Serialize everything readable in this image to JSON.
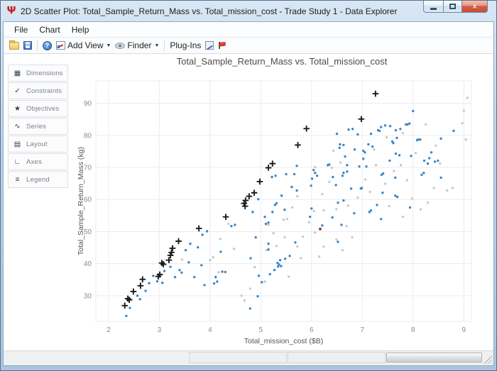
{
  "window": {
    "title": "2D Scatter Plot: Total_Sample_Return_Mass vs. Total_mission_cost - Trade Study 1 - Data Explorer",
    "app_icon_glyph": "Ψ",
    "close_glyph": "x"
  },
  "menu": {
    "items": [
      {
        "label": "File"
      },
      {
        "label": "Chart"
      },
      {
        "label": "Help"
      }
    ]
  },
  "toolbar": {
    "add_view_label": "Add View",
    "finder_label": "Finder",
    "plugins_label": "Plug-Ins",
    "help_glyph": "?",
    "caret": "▼"
  },
  "sidebar": {
    "items": [
      {
        "label": "Dimensions",
        "icon": "▦"
      },
      {
        "label": "Constraints",
        "icon": "✓"
      },
      {
        "label": "Objectives",
        "icon": "★"
      },
      {
        "label": "Series",
        "icon": "∿"
      },
      {
        "label": "Layout",
        "icon": "▤"
      },
      {
        "label": "Axes",
        "icon": "∟"
      },
      {
        "label": "Legend",
        "icon": "≡"
      }
    ]
  },
  "chart_data": {
    "type": "scatter",
    "title": "Total_Sample_Return_Mass vs. Total_mission_cost",
    "xlabel": "Total_mission_cost ($B)",
    "ylabel": "Total_Sample_Return_Mass (kg)",
    "xlim": [
      1.75,
      9.15
    ],
    "ylim": [
      22,
      97
    ],
    "xticks": [
      2,
      3,
      4,
      5,
      6,
      7,
      8,
      9
    ],
    "yticks": [
      30,
      40,
      50,
      60,
      70,
      80,
      90
    ],
    "grid": true,
    "legend": "none",
    "colors": {
      "gray": "#c9c9c9",
      "blue": "#3a87c8",
      "red": "#b03a2e",
      "black": "#1b1b1b",
      "gridline": "#ececf0"
    },
    "series": [
      {
        "name": "gray-points",
        "marker": "dot",
        "color": "#c9c9c9",
        "points": [
          [
            3.45,
            41.3
          ],
          [
            4.0,
            41.1
          ],
          [
            4.06,
            42.0
          ],
          [
            4.17,
            37.3
          ],
          [
            4.2,
            47.7
          ],
          [
            4.36,
            52.4
          ],
          [
            4.47,
            44.6
          ],
          [
            4.62,
            30.0
          ],
          [
            4.68,
            28.5
          ],
          [
            4.79,
            32.2
          ],
          [
            4.88,
            38.9
          ],
          [
            5.08,
            34.4
          ],
          [
            5.11,
            44.2
          ],
          [
            5.15,
            52.1
          ],
          [
            5.25,
            49.5
          ],
          [
            5.31,
            45.5
          ],
          [
            5.45,
            53.7
          ],
          [
            5.47,
            48.2
          ],
          [
            5.52,
            53.9
          ],
          [
            5.55,
            35.9
          ],
          [
            5.62,
            57.5
          ],
          [
            5.72,
            61.0
          ],
          [
            5.72,
            45.3
          ],
          [
            5.79,
            41.7
          ],
          [
            5.83,
            48.4
          ],
          [
            5.95,
            52.9
          ],
          [
            6.05,
            56.4
          ],
          [
            6.07,
            49.7
          ],
          [
            6.07,
            70.1
          ],
          [
            6.15,
            42.2
          ],
          [
            6.21,
            61.7
          ],
          [
            6.24,
            56.6
          ],
          [
            6.24,
            45.3
          ],
          [
            6.35,
            65.5
          ],
          [
            6.4,
            69.9
          ],
          [
            6.43,
            75.2
          ],
          [
            6.49,
            57.0
          ],
          [
            6.49,
            47.5
          ],
          [
            6.57,
            71.5
          ],
          [
            6.61,
            44.2
          ],
          [
            6.69,
            51.7
          ],
          [
            6.72,
            58.1
          ],
          [
            6.8,
            48.2
          ],
          [
            6.91,
            60.6
          ],
          [
            7.06,
            66.2
          ],
          [
            7.15,
            62.4
          ],
          [
            7.23,
            75.6
          ],
          [
            7.27,
            70.7
          ],
          [
            7.45,
            64.9
          ],
          [
            7.48,
            79.4
          ],
          [
            7.53,
            57.9
          ],
          [
            7.62,
            68.9
          ],
          [
            7.76,
            70.7
          ],
          [
            7.8,
            80.7
          ],
          [
            7.8,
            54.6
          ],
          [
            7.88,
            66.0
          ],
          [
            7.98,
            60.3
          ],
          [
            8.05,
            74.5
          ],
          [
            8.15,
            56.9
          ],
          [
            8.25,
            83.4
          ],
          [
            8.29,
            59.0
          ],
          [
            8.41,
            63.6
          ],
          [
            8.45,
            76.8
          ],
          [
            8.53,
            71.2
          ],
          [
            8.67,
            62.8
          ],
          [
            8.78,
            63.6
          ],
          [
            8.97,
            83.8
          ],
          [
            9.0,
            87.7
          ],
          [
            9.04,
            78.7
          ],
          [
            9.07,
            91.7
          ]
        ]
      },
      {
        "name": "blue-points",
        "marker": "dot",
        "color": "#3a87c8",
        "points": [
          [
            2.35,
            23.7
          ],
          [
            2.42,
            26.2
          ],
          [
            2.57,
            30.0
          ],
          [
            2.62,
            28.9
          ],
          [
            2.73,
            31.5
          ],
          [
            2.8,
            33.9
          ],
          [
            2.88,
            36.2
          ],
          [
            2.96,
            34.5
          ],
          [
            3.06,
            34.0
          ],
          [
            3.1,
            37.7
          ],
          [
            3.22,
            39.0
          ],
          [
            3.31,
            35.8
          ],
          [
            3.4,
            38.0
          ],
          [
            3.44,
            37.2
          ],
          [
            3.52,
            44.2
          ],
          [
            3.58,
            40.4
          ],
          [
            3.61,
            46.2
          ],
          [
            3.69,
            35.8
          ],
          [
            3.76,
            45.1
          ],
          [
            3.83,
            39.5
          ],
          [
            3.85,
            49.0
          ],
          [
            3.89,
            33.3
          ],
          [
            3.94,
            50.1
          ],
          [
            4.08,
            33.8
          ],
          [
            4.11,
            35.8
          ],
          [
            4.14,
            34.4
          ],
          [
            4.21,
            43.7
          ],
          [
            4.24,
            37.5
          ],
          [
            4.3,
            37.4
          ],
          [
            4.42,
            51.7
          ],
          [
            4.49,
            52.1
          ],
          [
            4.79,
            26.0
          ],
          [
            4.8,
            41.7
          ],
          [
            4.84,
            56.1
          ],
          [
            4.9,
            48.2
          ],
          [
            4.94,
            29.8
          ],
          [
            4.95,
            60.1
          ],
          [
            4.96,
            36.2
          ],
          [
            5.02,
            34.2
          ],
          [
            5.08,
            54.6
          ],
          [
            5.1,
            52.4
          ],
          [
            5.15,
            52.8
          ],
          [
            5.15,
            46.2
          ],
          [
            5.15,
            44.4
          ],
          [
            5.18,
            36.7
          ],
          [
            5.22,
            67.0
          ],
          [
            5.23,
            56.1
          ],
          [
            5.27,
            38.0
          ],
          [
            5.28,
            58.3
          ],
          [
            5.29,
            67.4
          ],
          [
            5.31,
            58.8
          ],
          [
            5.33,
            40.2
          ],
          [
            5.34,
            39.1
          ],
          [
            5.36,
            39.7
          ],
          [
            5.38,
            41.1
          ],
          [
            5.4,
            39.2
          ],
          [
            5.41,
            61.2
          ],
          [
            5.47,
            56.8
          ],
          [
            5.48,
            41.5
          ],
          [
            5.5,
            67.9
          ],
          [
            5.57,
            42.4
          ],
          [
            5.61,
            63.9
          ],
          [
            5.66,
            67.9
          ],
          [
            5.68,
            46.6
          ],
          [
            5.71,
            62.8
          ],
          [
            5.71,
            70.5
          ],
          [
            5.97,
            54.6
          ],
          [
            5.99,
            64.3
          ],
          [
            6.0,
            57.2
          ],
          [
            6.01,
            66.5
          ],
          [
            6.04,
            69.2
          ],
          [
            6.07,
            68.3
          ],
          [
            6.11,
            67.4
          ],
          [
            6.21,
            51.9
          ],
          [
            6.32,
            70.7
          ],
          [
            6.35,
            70.9
          ],
          [
            6.41,
            54.4
          ],
          [
            6.42,
            67.0
          ],
          [
            6.48,
            64.5
          ],
          [
            6.5,
            80.5
          ],
          [
            6.52,
            59.0
          ],
          [
            6.52,
            46.8
          ],
          [
            6.55,
            76.1
          ],
          [
            6.56,
            77.2
          ],
          [
            6.59,
            52.1
          ],
          [
            6.61,
            67.4
          ],
          [
            6.63,
            59.7
          ],
          [
            6.63,
            68.3
          ],
          [
            6.63,
            77.0
          ],
          [
            6.66,
            73.4
          ],
          [
            6.7,
            70.7
          ],
          [
            6.7,
            68.7
          ],
          [
            6.73,
            81.8
          ],
          [
            6.78,
            63.4
          ],
          [
            6.81,
            82.0
          ],
          [
            6.84,
            55.7
          ],
          [
            6.85,
            75.6
          ],
          [
            6.91,
            80.3
          ],
          [
            6.94,
            70.3
          ],
          [
            6.97,
            63.4
          ],
          [
            6.99,
            63.6
          ],
          [
            7.02,
            75.2
          ],
          [
            7.02,
            72.7
          ],
          [
            7.05,
            74.7
          ],
          [
            7.08,
            70.3
          ],
          [
            7.12,
            77.2
          ],
          [
            7.14,
            56.1
          ],
          [
            7.17,
            80.5
          ],
          [
            7.17,
            56.6
          ],
          [
            7.2,
            76.5
          ],
          [
            7.29,
            58.3
          ],
          [
            7.31,
            81.6
          ],
          [
            7.34,
            81.4
          ],
          [
            7.37,
            82.6
          ],
          [
            7.37,
            53.9
          ],
          [
            7.38,
            67.7
          ],
          [
            7.4,
            62.1
          ],
          [
            7.41,
            68.1
          ],
          [
            7.45,
            83.1
          ],
          [
            7.54,
            72.1
          ],
          [
            7.55,
            82.9
          ],
          [
            7.59,
            78.1
          ],
          [
            7.61,
            77.6
          ],
          [
            7.65,
            61.2
          ],
          [
            7.65,
            66.8
          ],
          [
            7.66,
            81.6
          ],
          [
            7.66,
            74.3
          ],
          [
            7.68,
            79.2
          ],
          [
            7.69,
            60.8
          ],
          [
            7.73,
            73.8
          ],
          [
            7.75,
            82.0
          ],
          [
            7.86,
            83.4
          ],
          [
            7.89,
            83.4
          ],
          [
            7.93,
            83.7
          ],
          [
            7.94,
            57.5
          ],
          [
            7.96,
            73.6
          ],
          [
            8.0,
            87.6
          ],
          [
            8.08,
            78.5
          ],
          [
            8.1,
            78.7
          ],
          [
            8.14,
            78.7
          ],
          [
            8.17,
            67.7
          ],
          [
            8.21,
            68.3
          ],
          [
            8.22,
            72.1
          ],
          [
            8.29,
            71.2
          ],
          [
            8.32,
            72.9
          ],
          [
            8.36,
            74.7
          ],
          [
            8.43,
            71.8
          ],
          [
            8.49,
            72.1
          ],
          [
            8.55,
            79.0
          ],
          [
            8.55,
            66.8
          ],
          [
            8.8,
            81.4
          ]
        ]
      },
      {
        "name": "red-point",
        "marker": "dot-large",
        "color": "#b03a2e",
        "points": [
          [
            6.17,
            50.8
          ]
        ]
      },
      {
        "name": "black-plus-points",
        "marker": "plus",
        "color": "#1b1b1b",
        "points": [
          [
            2.32,
            26.9
          ],
          [
            2.38,
            29.1
          ],
          [
            2.41,
            28.7
          ],
          [
            2.49,
            31.3
          ],
          [
            2.63,
            33.1
          ],
          [
            2.67,
            35.1
          ],
          [
            2.98,
            36.0
          ],
          [
            3.01,
            36.6
          ],
          [
            3.05,
            40.2
          ],
          [
            3.08,
            39.8
          ],
          [
            3.19,
            41.1
          ],
          [
            3.22,
            42.6
          ],
          [
            3.24,
            43.5
          ],
          [
            3.26,
            44.8
          ],
          [
            3.38,
            47.0
          ],
          [
            3.78,
            51.0
          ],
          [
            4.31,
            54.6
          ],
          [
            4.67,
            58.8
          ],
          [
            4.69,
            57.9
          ],
          [
            4.7,
            59.7
          ],
          [
            4.77,
            61.0
          ],
          [
            4.87,
            62.1
          ],
          [
            4.98,
            65.6
          ],
          [
            5.15,
            69.9
          ],
          [
            5.23,
            71.2
          ],
          [
            5.73,
            77.0
          ],
          [
            5.9,
            82.1
          ],
          [
            6.98,
            85.1
          ],
          [
            7.26,
            93.0
          ]
        ]
      }
    ]
  }
}
